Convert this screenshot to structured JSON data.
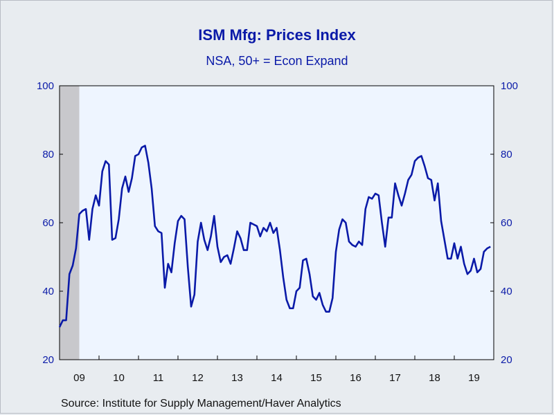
{
  "chart_data": {
    "type": "line",
    "title": "ISM Mfg: Prices Index",
    "subtitle": "NSA, 50+ = Econ Expand",
    "source": "Source:  Institute for Supply Management/Haver Analytics",
    "ylim": [
      20,
      100
    ],
    "yticks": [
      20,
      40,
      60,
      80,
      100
    ],
    "xlim": [
      "2009-01",
      "2019-12"
    ],
    "xtick_labels": [
      "09",
      "10",
      "11",
      "12",
      "13",
      "14",
      "15",
      "16",
      "17",
      "18",
      "19"
    ],
    "recession_band": [
      "2009-01",
      "2009-06"
    ],
    "colors": {
      "line": "#0a1aa8",
      "plot_bg": "#eef5ff",
      "recession": "#c8c8cc",
      "axis_text": "#0a1aa8"
    },
    "series": [
      {
        "start": "2009-01",
        "frequency": "monthly",
        "values": [
          29.5,
          31.5,
          31.5,
          45.0,
          47.5,
          52.5,
          62.5,
          63.5,
          64.0,
          55.0,
          64.0,
          68.0,
          65.0,
          75.0,
          78.0,
          77.0,
          55.0,
          55.5,
          61.0,
          70.0,
          73.5,
          69.0,
          73.0,
          79.5,
          80.0,
          82.0,
          82.5,
          77.5,
          70.0,
          59.0,
          57.5,
          57.0,
          41.0,
          48.0,
          45.5,
          54.0,
          60.5,
          62.0,
          61.0,
          47.0,
          35.5,
          39.0,
          54.5,
          60.0,
          55.0,
          52.0,
          56.0,
          62.0,
          53.0,
          48.5,
          50.0,
          50.5,
          48.0,
          52.5,
          57.5,
          55.5,
          52.0,
          52.0,
          60.0,
          59.5,
          59.0,
          56.0,
          58.5,
          57.5,
          60.0,
          57.0,
          58.5,
          52.0,
          44.0,
          37.5,
          35.0,
          35.0,
          40.0,
          41.0,
          49.0,
          49.5,
          45.0,
          38.5,
          37.5,
          39.5,
          36.0,
          34.0,
          34.0,
          38.0,
          51.5,
          58.0,
          61.0,
          60.0,
          54.5,
          53.5,
          53.0,
          54.5,
          53.5,
          64.0,
          67.5,
          67.0,
          68.5,
          68.0,
          60.0,
          53.0,
          61.5,
          61.5,
          71.5,
          68.0,
          65.0,
          68.5,
          72.5,
          74.0,
          78.0,
          79.0,
          79.5,
          76.5,
          73.0,
          72.5,
          66.5,
          71.5,
          60.5,
          55.0,
          49.5,
          49.5,
          54.0,
          49.5,
          53.0,
          48.0,
          45.0,
          46.0,
          49.5,
          45.5,
          46.5,
          51.5,
          52.5,
          53.0
        ]
      }
    ]
  }
}
